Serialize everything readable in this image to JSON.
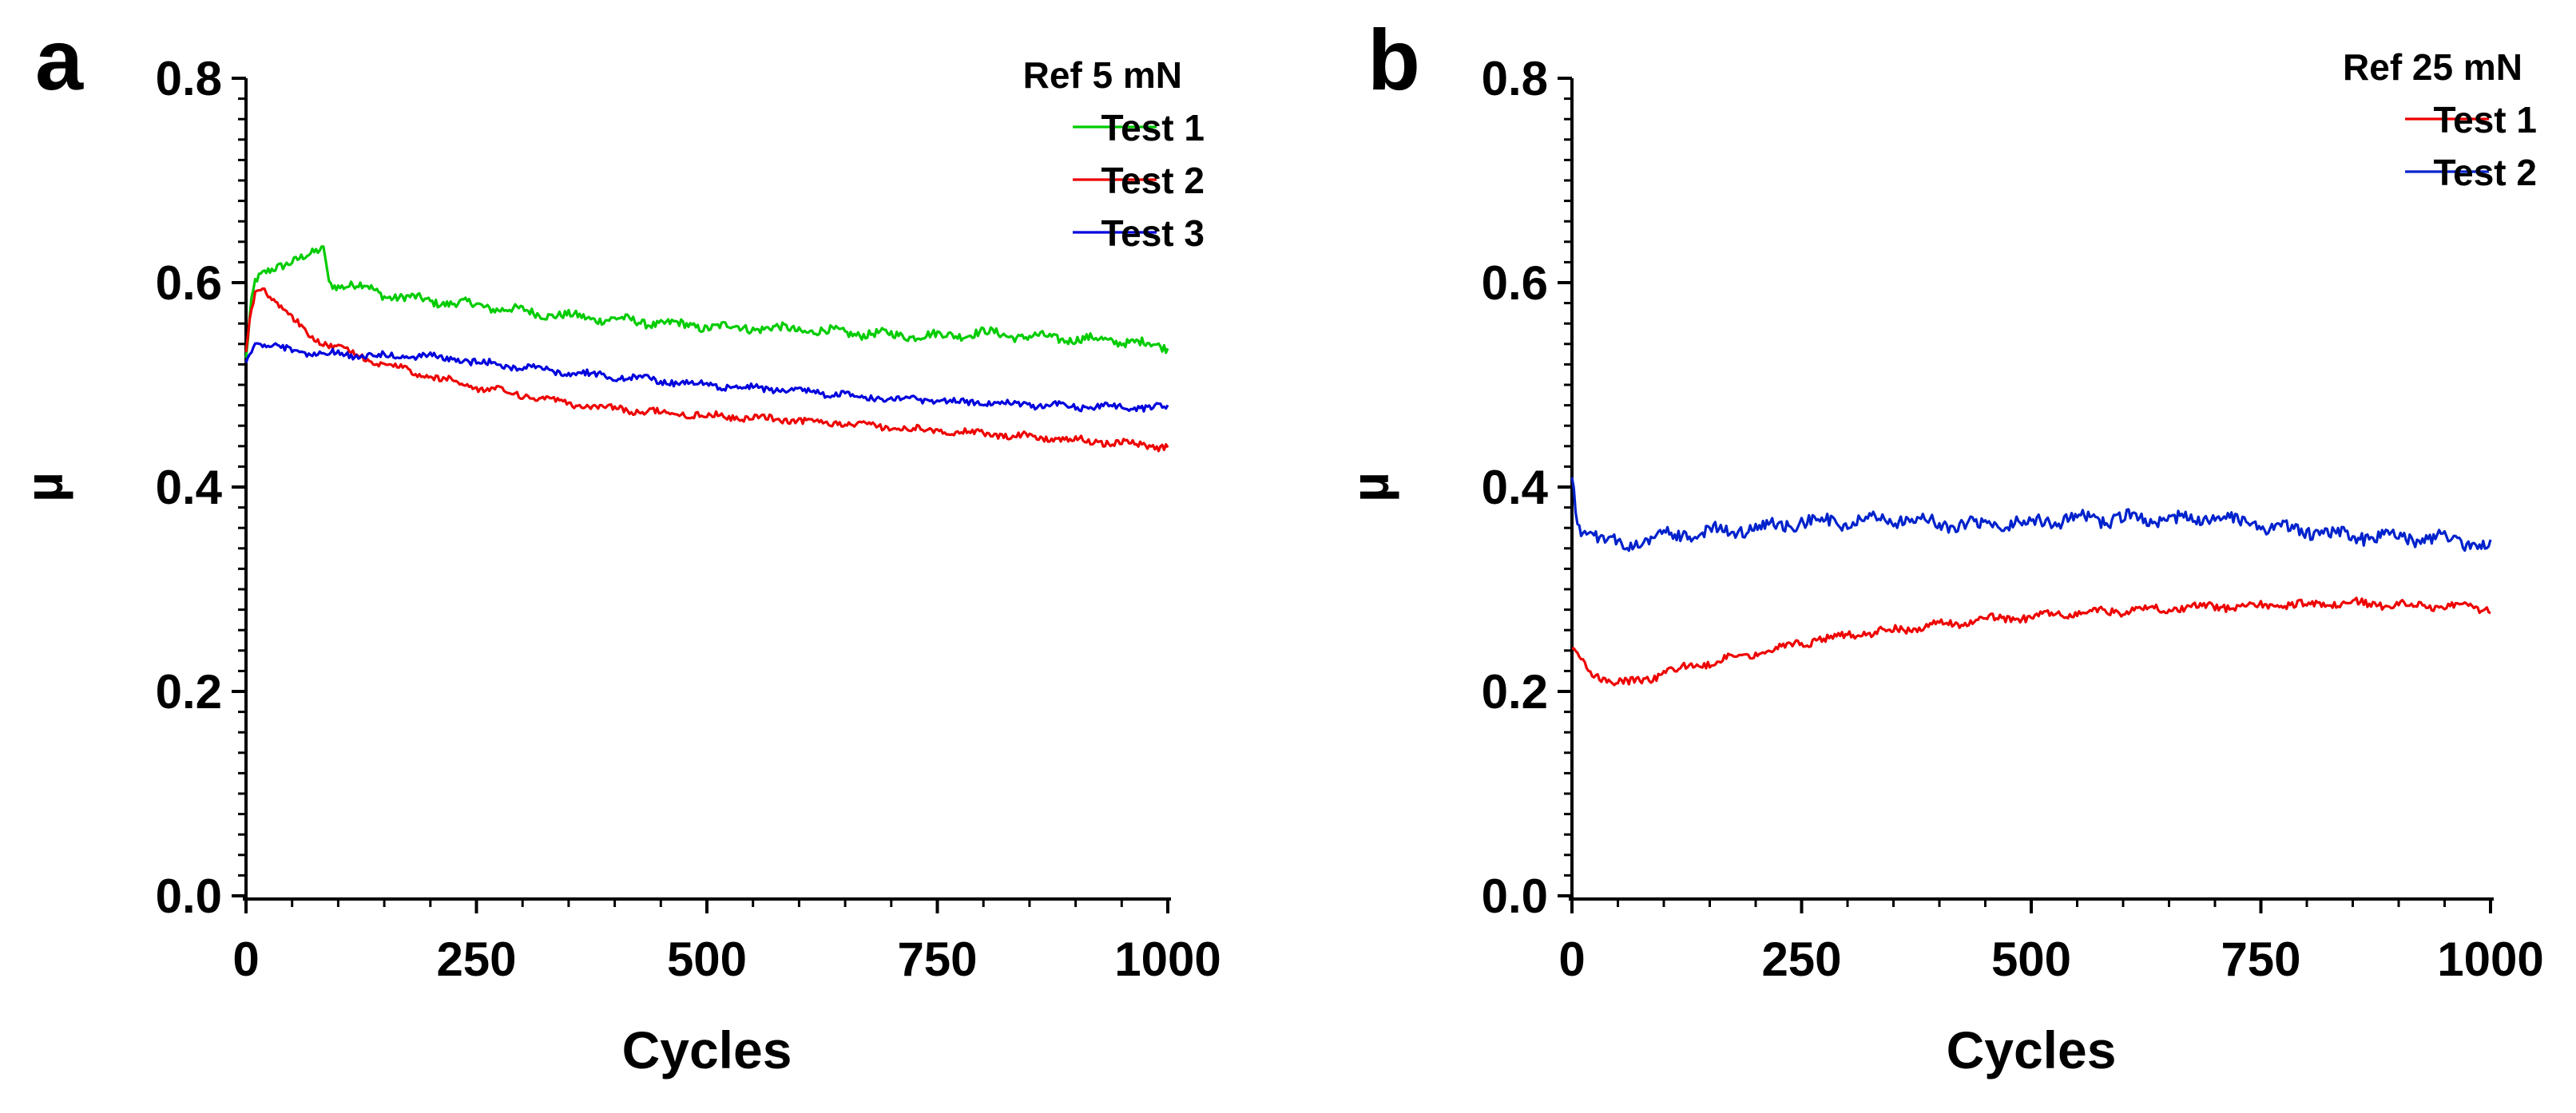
{
  "figure": {
    "panels": [
      {
        "letter": "a",
        "legend_title": "Ref  5 mN"
      },
      {
        "letter": "b",
        "legend_title": "Ref 25 mN"
      }
    ]
  },
  "chart_data": [
    {
      "panel": "a",
      "type": "line",
      "title": "",
      "xlabel": "Cycles",
      "ylabel": "µ",
      "xlim": [
        0,
        1000
      ],
      "ylim": [
        0,
        0.8
      ],
      "xticks": [
        "0",
        "250",
        "500",
        "750",
        "1000"
      ],
      "yticks": [
        "0.0",
        "0.2",
        "0.4",
        "0.6",
        "0.8"
      ],
      "grid": false,
      "legend_title": "Ref  5 mN",
      "legend_position": "top-right",
      "series": [
        {
          "name": "Test 1",
          "color": "#00cc00",
          "noise": 0.004,
          "x": [
            0,
            5,
            10,
            20,
            35,
            50,
            70,
            85,
            90,
            100,
            115,
            130,
            150,
            200,
            250,
            300,
            350,
            400,
            450,
            500,
            550,
            600,
            650,
            700,
            750,
            800,
            850,
            900,
            950,
            1000
          ],
          "y": [
            0.525,
            0.575,
            0.6,
            0.608,
            0.617,
            0.622,
            0.626,
            0.633,
            0.6,
            0.598,
            0.597,
            0.596,
            0.588,
            0.582,
            0.578,
            0.572,
            0.567,
            0.564,
            0.56,
            0.557,
            0.556,
            0.554,
            0.551,
            0.549,
            0.548,
            0.551,
            0.547,
            0.545,
            0.543,
            0.537
          ]
        },
        {
          "name": "Test 2",
          "color": "#ee0000",
          "noise": 0.003,
          "x": [
            0,
            5,
            10,
            20,
            30,
            50,
            70,
            100,
            150,
            200,
            250,
            300,
            350,
            400,
            450,
            500,
            550,
            600,
            650,
            700,
            750,
            800,
            850,
            900,
            950,
            1000
          ],
          "y": [
            0.53,
            0.57,
            0.59,
            0.594,
            0.585,
            0.565,
            0.548,
            0.536,
            0.52,
            0.508,
            0.498,
            0.49,
            0.481,
            0.477,
            0.473,
            0.47,
            0.468,
            0.465,
            0.462,
            0.458,
            0.455,
            0.452,
            0.449,
            0.446,
            0.443,
            0.439
          ]
        },
        {
          "name": "Test 3",
          "color": "#0000dd",
          "noise": 0.003,
          "x": [
            0,
            5,
            10,
            20,
            30,
            50,
            80,
            100,
            150,
            200,
            250,
            300,
            350,
            400,
            450,
            500,
            550,
            600,
            650,
            700,
            750,
            800,
            850,
            900,
            950,
            1000
          ],
          "y": [
            0.523,
            0.535,
            0.542,
            0.54,
            0.537,
            0.534,
            0.531,
            0.53,
            0.528,
            0.528,
            0.522,
            0.517,
            0.512,
            0.508,
            0.504,
            0.5,
            0.497,
            0.495,
            0.49,
            0.487,
            0.484,
            0.483,
            0.481,
            0.479,
            0.478,
            0.478
          ]
        }
      ]
    },
    {
      "panel": "b",
      "type": "line",
      "title": "",
      "xlabel": "Cycles",
      "ylabel": "µ",
      "xlim": [
        0,
        1000
      ],
      "ylim": [
        0,
        0.8
      ],
      "xticks": [
        "0",
        "250",
        "500",
        "750",
        "1000"
      ],
      "yticks": [
        "0.0",
        "0.2",
        "0.4",
        "0.6",
        "0.8"
      ],
      "grid": false,
      "legend_title": "Ref 25 mN",
      "legend_position": "top-right",
      "series": [
        {
          "name": "Test 1",
          "color": "#ee0000",
          "noise": 0.0035,
          "x": [
            0,
            10,
            20,
            40,
            60,
            80,
            100,
            150,
            200,
            250,
            300,
            350,
            400,
            450,
            500,
            550,
            600,
            650,
            700,
            750,
            800,
            850,
            900,
            950,
            1000
          ],
          "y": [
            0.24,
            0.23,
            0.22,
            0.21,
            0.208,
            0.212,
            0.218,
            0.228,
            0.238,
            0.248,
            0.255,
            0.26,
            0.265,
            0.27,
            0.273,
            0.277,
            0.279,
            0.281,
            0.283,
            0.284,
            0.285,
            0.286,
            0.285,
            0.284,
            0.281
          ]
        },
        {
          "name": "Test 2",
          "color": "#0022cc",
          "noise": 0.006,
          "x": [
            0,
            5,
            10,
            20,
            40,
            60,
            80,
            100,
            150,
            200,
            250,
            300,
            350,
            400,
            450,
            500,
            550,
            600,
            650,
            700,
            750,
            800,
            850,
            900,
            950,
            1000
          ],
          "y": [
            0.41,
            0.37,
            0.355,
            0.357,
            0.345,
            0.342,
            0.348,
            0.352,
            0.356,
            0.36,
            0.366,
            0.366,
            0.37,
            0.365,
            0.362,
            0.366,
            0.368,
            0.369,
            0.368,
            0.37,
            0.362,
            0.357,
            0.353,
            0.35,
            0.35,
            0.342
          ]
        }
      ]
    }
  ]
}
